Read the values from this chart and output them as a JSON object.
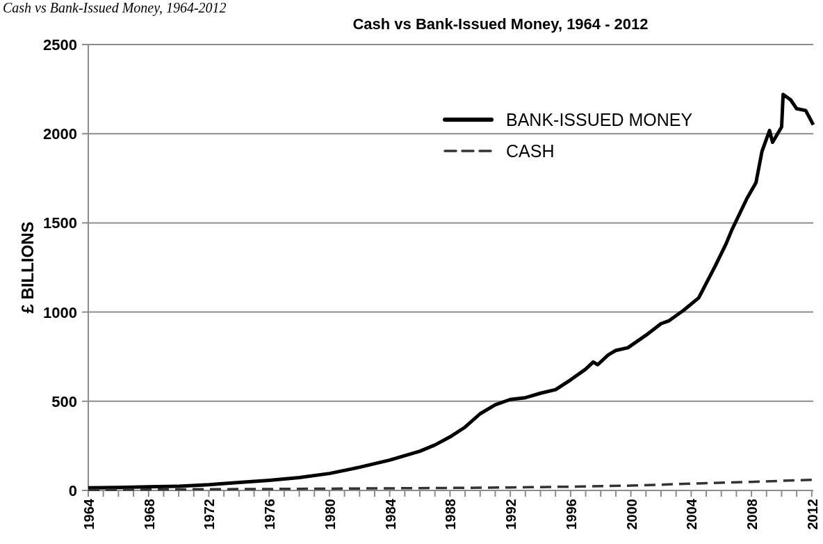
{
  "chart_data": {
    "type": "line",
    "title": "Cash vs Bank-Issued Money, 1964 - 2012",
    "ylabel": "£ BILLIONS",
    "annotations": [
      "Cash vs Bank-Issued Money, 1964-2012"
    ],
    "series": [
      {
        "name": "BANK-ISSUED MONEY",
        "color": "#000000",
        "line_style": "solid",
        "x": [
          1964,
          1966,
          1968,
          1970,
          1972,
          1974,
          1976,
          1978,
          1980,
          1982,
          1984,
          1986,
          1987,
          1988,
          1989,
          1990,
          1991,
          1992,
          1993,
          1994,
          1995,
          1996,
          1997,
          1997.5,
          1997.8,
          1998.5,
          1999,
          1999.8,
          2001,
          2002,
          2002.5,
          2003.5,
          2004.5,
          2005.6,
          2006.3,
          2006.7,
          2007.7,
          2008.3,
          2008.7,
          2009.2,
          2009.4,
          2010.0,
          2010.1,
          2010.6,
          2011.0,
          2011.6,
          2012.1
        ],
        "values": [
          15,
          17,
          20,
          23,
          32,
          45,
          57,
          72,
          95,
          130,
          170,
          220,
          255,
          300,
          355,
          430,
          480,
          510,
          520,
          545,
          565,
          620,
          680,
          720,
          705,
          760,
          785,
          800,
          870,
          935,
          950,
          1010,
          1080,
          1259,
          1380,
          1461,
          1637,
          1726,
          1902,
          2018,
          1952,
          2038,
          2220,
          2190,
          2140,
          2130,
          2050
        ]
      },
      {
        "name": "CASH",
        "color": "#333333",
        "line_style": "dashed",
        "x": [
          1964,
          1968,
          1972,
          1976,
          1980,
          1984,
          1988,
          1992,
          1996,
          2000,
          2004,
          2008,
          2012.1
        ],
        "values": [
          3,
          5,
          7,
          8,
          10,
          12,
          14,
          17,
          21,
          27,
          38,
          48,
          60
        ]
      }
    ],
    "xlim": [
      1964,
      2012.1
    ],
    "xticks": [
      1964,
      {
        "value": 1965,
        "label": null
      },
      {
        "value": 1966,
        "label": null
      },
      {
        "value": 1967,
        "label": null
      },
      1968,
      {
        "value": 1969,
        "label": null
      },
      {
        "value": 1970,
        "label": null
      },
      {
        "value": 1971,
        "label": null
      },
      1972,
      {
        "value": 1973,
        "label": null
      },
      {
        "value": 1974,
        "label": null
      },
      {
        "value": 1975,
        "label": null
      },
      1976,
      {
        "value": 1977,
        "label": null
      },
      {
        "value": 1978,
        "label": null
      },
      {
        "value": 1979,
        "label": null
      },
      1980,
      {
        "value": 1981,
        "label": null
      },
      {
        "value": 1982,
        "label": null
      },
      {
        "value": 1983,
        "label": null
      },
      1984,
      {
        "value": 1985,
        "label": null
      },
      {
        "value": 1986,
        "label": null
      },
      {
        "value": 1987,
        "label": null
      },
      1988,
      {
        "value": 1989,
        "label": null
      },
      {
        "value": 1990,
        "label": null
      },
      {
        "value": 1991,
        "label": null
      },
      1992,
      {
        "value": 1993,
        "label": null
      },
      {
        "value": 1994,
        "label": null
      },
      {
        "value": 1995,
        "label": null
      },
      1996,
      {
        "value": 1997,
        "label": null
      },
      {
        "value": 1998,
        "label": null
      },
      {
        "value": 1999,
        "label": null
      },
      2000,
      {
        "value": 2001,
        "label": null
      },
      {
        "value": 2002,
        "label": null
      },
      {
        "value": 2003,
        "label": null
      },
      2004,
      {
        "value": 2005,
        "label": null
      },
      {
        "value": 2006,
        "label": null
      },
      {
        "value": 2007,
        "label": null
      },
      2008,
      {
        "value": 2009,
        "label": null
      },
      {
        "value": 2010,
        "label": null
      },
      {
        "value": 2011,
        "label": null
      },
      2012
    ],
    "ylim": [
      0,
      2500
    ],
    "yticks": [
      0,
      500,
      1000,
      1500,
      2000,
      2500
    ],
    "grid": "y",
    "legend": "top right",
    "marker": "none"
  }
}
